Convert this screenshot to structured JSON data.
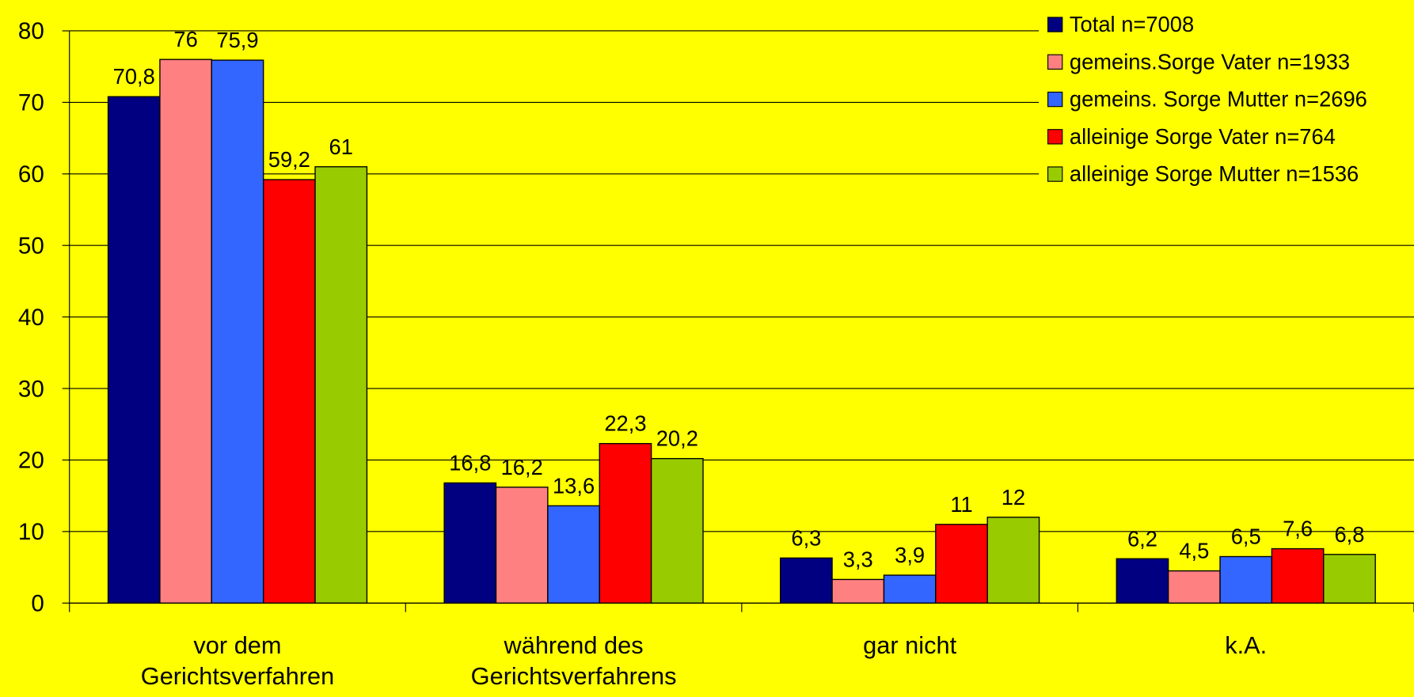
{
  "chart_data": {
    "type": "bar",
    "categories": [
      "vor dem Gerichtsverfahren",
      "während des Gerichtsverfahrens",
      "gar nicht",
      "k.A."
    ],
    "series": [
      {
        "name": "Total n=7008",
        "color": "#000080",
        "values": [
          70.8,
          16.8,
          6.3,
          6.2
        ],
        "value_labels": [
          "70,8",
          "16,8",
          "6,3",
          "6,2"
        ]
      },
      {
        "name": "gemeins.Sorge Vater n=1933",
        "color": "#ff8080",
        "values": [
          76,
          16.2,
          3.3,
          4.5
        ],
        "value_labels": [
          "76",
          "16,2",
          "3,3",
          "4,5"
        ]
      },
      {
        "name": "gemeins. Sorge Mutter n=2696",
        "color": "#3366ff",
        "values": [
          75.9,
          13.6,
          3.9,
          6.5
        ],
        "value_labels": [
          "75,9",
          "13,6",
          "3,9",
          "6,5"
        ]
      },
      {
        "name": "alleinige Sorge Vater n=764",
        "color": "#ff0000",
        "values": [
          59.2,
          22.3,
          11,
          7.6
        ],
        "value_labels": [
          "59,2",
          "22,3",
          "11",
          "7,6"
        ]
      },
      {
        "name": "alleinige Sorge Mutter n=1536",
        "color": "#99cc00",
        "values": [
          61,
          20.2,
          12,
          6.8
        ],
        "value_labels": [
          "61",
          "20,2",
          "12",
          "6,8"
        ]
      }
    ],
    "ylim": [
      0,
      80
    ],
    "yticks": [
      0,
      10,
      20,
      30,
      40,
      50,
      60,
      70,
      80
    ],
    "grid": true,
    "legend": "top-right"
  }
}
